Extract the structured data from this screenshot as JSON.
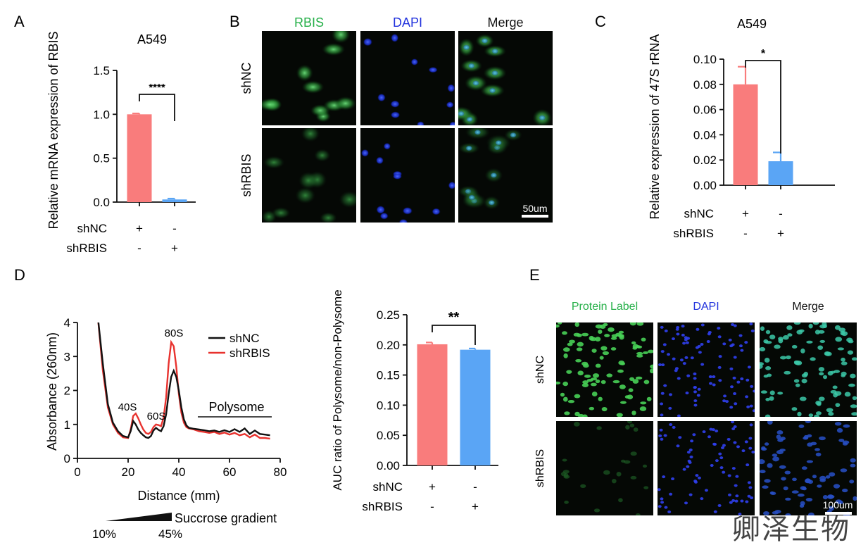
{
  "chart_data": [
    {
      "panel": "A",
      "type": "bar",
      "title": "A549",
      "ylabel": "Relative mRNA expression of RBIS",
      "ylim": [
        0,
        1.5
      ],
      "yticks": [
        "0.0",
        "0.5",
        "1.0",
        "1.5"
      ],
      "bars": [
        {
          "value": 1.0,
          "error": 0.01,
          "color": "#F97C7C"
        },
        {
          "value": 0.03,
          "error": 0.01,
          "color": "#5AA5F5"
        }
      ],
      "significance": "****",
      "conditions": [
        {
          "label": "shNC",
          "marks": [
            "+",
            "-"
          ]
        },
        {
          "label": "shRBIS",
          "marks": [
            "-",
            "+"
          ]
        }
      ]
    },
    {
      "panel": "C",
      "type": "bar",
      "title": "A549",
      "ylabel": "Relative  expression of 47S rRNA",
      "ylim": [
        0,
        0.1
      ],
      "yticks": [
        "0.00",
        "0.02",
        "0.04",
        "0.06",
        "0.08",
        "0.10"
      ],
      "bars": [
        {
          "value": 0.08,
          "error": 0.014,
          "color": "#F97C7C"
        },
        {
          "value": 0.019,
          "error": 0.007,
          "color": "#5AA5F5"
        }
      ],
      "significance": "*",
      "conditions": [
        {
          "label": "shNC",
          "marks": [
            "+",
            "-"
          ]
        },
        {
          "label": "shRBIS",
          "marks": [
            "-",
            "+"
          ]
        }
      ]
    },
    {
      "panel": "D",
      "type": "line",
      "xlabel": "Distance (mm)",
      "ylabel": "Absorbance (260nm)",
      "xlim": [
        0,
        80
      ],
      "ylim": [
        0,
        4
      ],
      "xticks": [
        "0",
        "20",
        "40",
        "60",
        "80"
      ],
      "yticks": [
        "0",
        "1",
        "2",
        "3",
        "4"
      ],
      "series": [
        {
          "name": "shNC",
          "color": "#111111",
          "x": [
            8,
            10,
            12,
            14,
            16,
            18,
            20,
            21,
            22,
            23,
            24,
            25,
            26,
            27,
            28,
            29,
            30,
            31,
            32,
            33,
            34,
            35,
            36,
            37,
            38,
            39,
            40,
            41,
            42,
            43,
            44,
            46,
            48,
            50,
            52,
            54,
            56,
            58,
            60,
            62,
            64,
            66,
            68,
            70,
            72,
            74,
            76
          ],
          "y": [
            4.2,
            2.8,
            1.6,
            1.05,
            0.8,
            0.66,
            0.62,
            0.8,
            1.1,
            1.0,
            0.85,
            0.75,
            0.68,
            0.62,
            0.6,
            0.66,
            0.82,
            0.9,
            0.84,
            0.8,
            0.95,
            1.3,
            1.9,
            2.4,
            2.58,
            2.4,
            2.0,
            1.5,
            1.15,
            0.97,
            0.9,
            0.87,
            0.85,
            0.83,
            0.8,
            0.82,
            0.78,
            0.83,
            0.78,
            0.86,
            0.78,
            0.88,
            0.72,
            0.82,
            0.72,
            0.7,
            0.68
          ]
        },
        {
          "name": "shRBIS",
          "color": "#E8322E",
          "x": [
            8,
            10,
            12,
            14,
            16,
            18,
            20,
            21,
            22,
            23,
            24,
            25,
            26,
            27,
            28,
            29,
            30,
            31,
            32,
            33,
            34,
            35,
            36,
            37,
            38,
            39,
            40,
            41,
            42,
            43,
            44,
            46,
            48,
            50,
            52,
            54,
            56,
            58,
            60,
            62,
            64,
            66,
            68,
            70,
            72,
            74,
            76
          ],
          "y": [
            4.2,
            2.6,
            1.5,
            1.0,
            0.75,
            0.62,
            0.6,
            0.85,
            1.25,
            1.32,
            1.18,
            1.0,
            0.85,
            0.75,
            0.72,
            0.78,
            0.92,
            1.0,
            0.98,
            0.95,
            1.2,
            1.8,
            2.8,
            3.42,
            3.3,
            2.7,
            1.9,
            1.35,
            1.05,
            0.92,
            0.88,
            0.85,
            0.8,
            0.78,
            0.75,
            0.78,
            0.72,
            0.76,
            0.7,
            0.75,
            0.68,
            0.72,
            0.62,
            0.7,
            0.6,
            0.6,
            0.58
          ]
        }
      ],
      "annotations": [
        "40S",
        "60S",
        "80S",
        "Polysome"
      ],
      "legend": "top-right",
      "gradient": {
        "label": "Succrose gradient",
        "start": "10%",
        "end": "45%"
      }
    },
    {
      "panel": "D-bar",
      "type": "bar",
      "ylabel": "AUC ratio of Polysome/non-Polysome",
      "ylim": [
        0,
        0.25
      ],
      "yticks": [
        "0.00",
        "0.05",
        "0.10",
        "0.15",
        "0.20",
        "0.25"
      ],
      "bars": [
        {
          "value": 0.201,
          "error": 0.003,
          "color": "#F97C7C"
        },
        {
          "value": 0.192,
          "error": 0.002,
          "color": "#5AA5F5"
        }
      ],
      "significance": "**",
      "conditions": [
        {
          "label": "shNC",
          "marks": [
            "+",
            "-"
          ]
        },
        {
          "label": "shRBIS",
          "marks": [
            "-",
            "+"
          ]
        }
      ]
    }
  ],
  "panels": {
    "A": "A",
    "B": "B",
    "C": "C",
    "D": "D",
    "E": "E"
  },
  "panel_b": {
    "columns": [
      "RBIS",
      "DAPI",
      "Merge"
    ],
    "column_colors": [
      "#27B04A",
      "#2233DD",
      "#111111"
    ],
    "rows": [
      "shNC",
      "shRBIS"
    ],
    "scale_bar": "50um"
  },
  "panel_e": {
    "columns": [
      "Protein Label",
      "DAPI",
      "Merge"
    ],
    "column_colors": [
      "#27B04A",
      "#2233DD",
      "#111111"
    ],
    "rows": [
      "shNC",
      "shRBIS"
    ],
    "scale_bar": "100um"
  },
  "watermark": "卿泽生物"
}
